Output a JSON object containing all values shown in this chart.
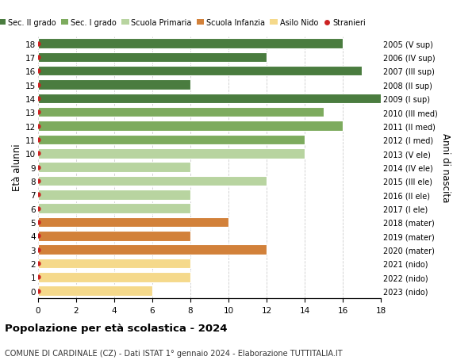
{
  "ages": [
    18,
    17,
    16,
    15,
    14,
    13,
    12,
    11,
    10,
    9,
    8,
    7,
    6,
    5,
    4,
    3,
    2,
    1,
    0
  ],
  "right_labels": [
    "2005 (V sup)",
    "2006 (IV sup)",
    "2007 (III sup)",
    "2008 (II sup)",
    "2009 (I sup)",
    "2010 (III med)",
    "2011 (II med)",
    "2012 (I med)",
    "2013 (V ele)",
    "2014 (IV ele)",
    "2015 (III ele)",
    "2016 (II ele)",
    "2017 (I ele)",
    "2018 (mater)",
    "2019 (mater)",
    "2020 (mater)",
    "2021 (nido)",
    "2022 (nido)",
    "2023 (nido)"
  ],
  "values": [
    16,
    12,
    17,
    8,
    18,
    15,
    16,
    14,
    14,
    8,
    12,
    8,
    8,
    10,
    8,
    12,
    8,
    8,
    6
  ],
  "bar_colors": [
    "#4a7c3f",
    "#4a7c3f",
    "#4a7c3f",
    "#4a7c3f",
    "#4a7c3f",
    "#7dab5e",
    "#7dab5e",
    "#7dab5e",
    "#b8d4a0",
    "#b8d4a0",
    "#b8d4a0",
    "#b8d4a0",
    "#b8d4a0",
    "#d2813a",
    "#d2813a",
    "#d2813a",
    "#f5d98b",
    "#f5d98b",
    "#f5d98b"
  ],
  "legend_labels": [
    "Sec. II grado",
    "Sec. I grado",
    "Scuola Primaria",
    "Scuola Infanzia",
    "Asilo Nido",
    "Stranieri"
  ],
  "legend_colors": [
    "#4a7c3f",
    "#7dab5e",
    "#b8d4a0",
    "#d2813a",
    "#f5d98b",
    "#cc2222"
  ],
  "ylabel_left": "Età alunni",
  "ylabel_right": "Anni di nascita",
  "xlim": [
    0,
    18
  ],
  "xticks": [
    0,
    2,
    4,
    6,
    8,
    10,
    12,
    14,
    16,
    18
  ],
  "title": "Popolazione per età scolastica - 2024",
  "subtitle": "COMUNE DI CARDINALE (CZ) - Dati ISTAT 1° gennaio 2024 - Elaborazione TUTTITALIA.IT",
  "background_color": "#ffffff",
  "grid_color": "#cccccc",
  "dot_color": "#cc2222",
  "bar_height": 0.72,
  "ylim_low": -0.55,
  "ylim_high": 18.55
}
